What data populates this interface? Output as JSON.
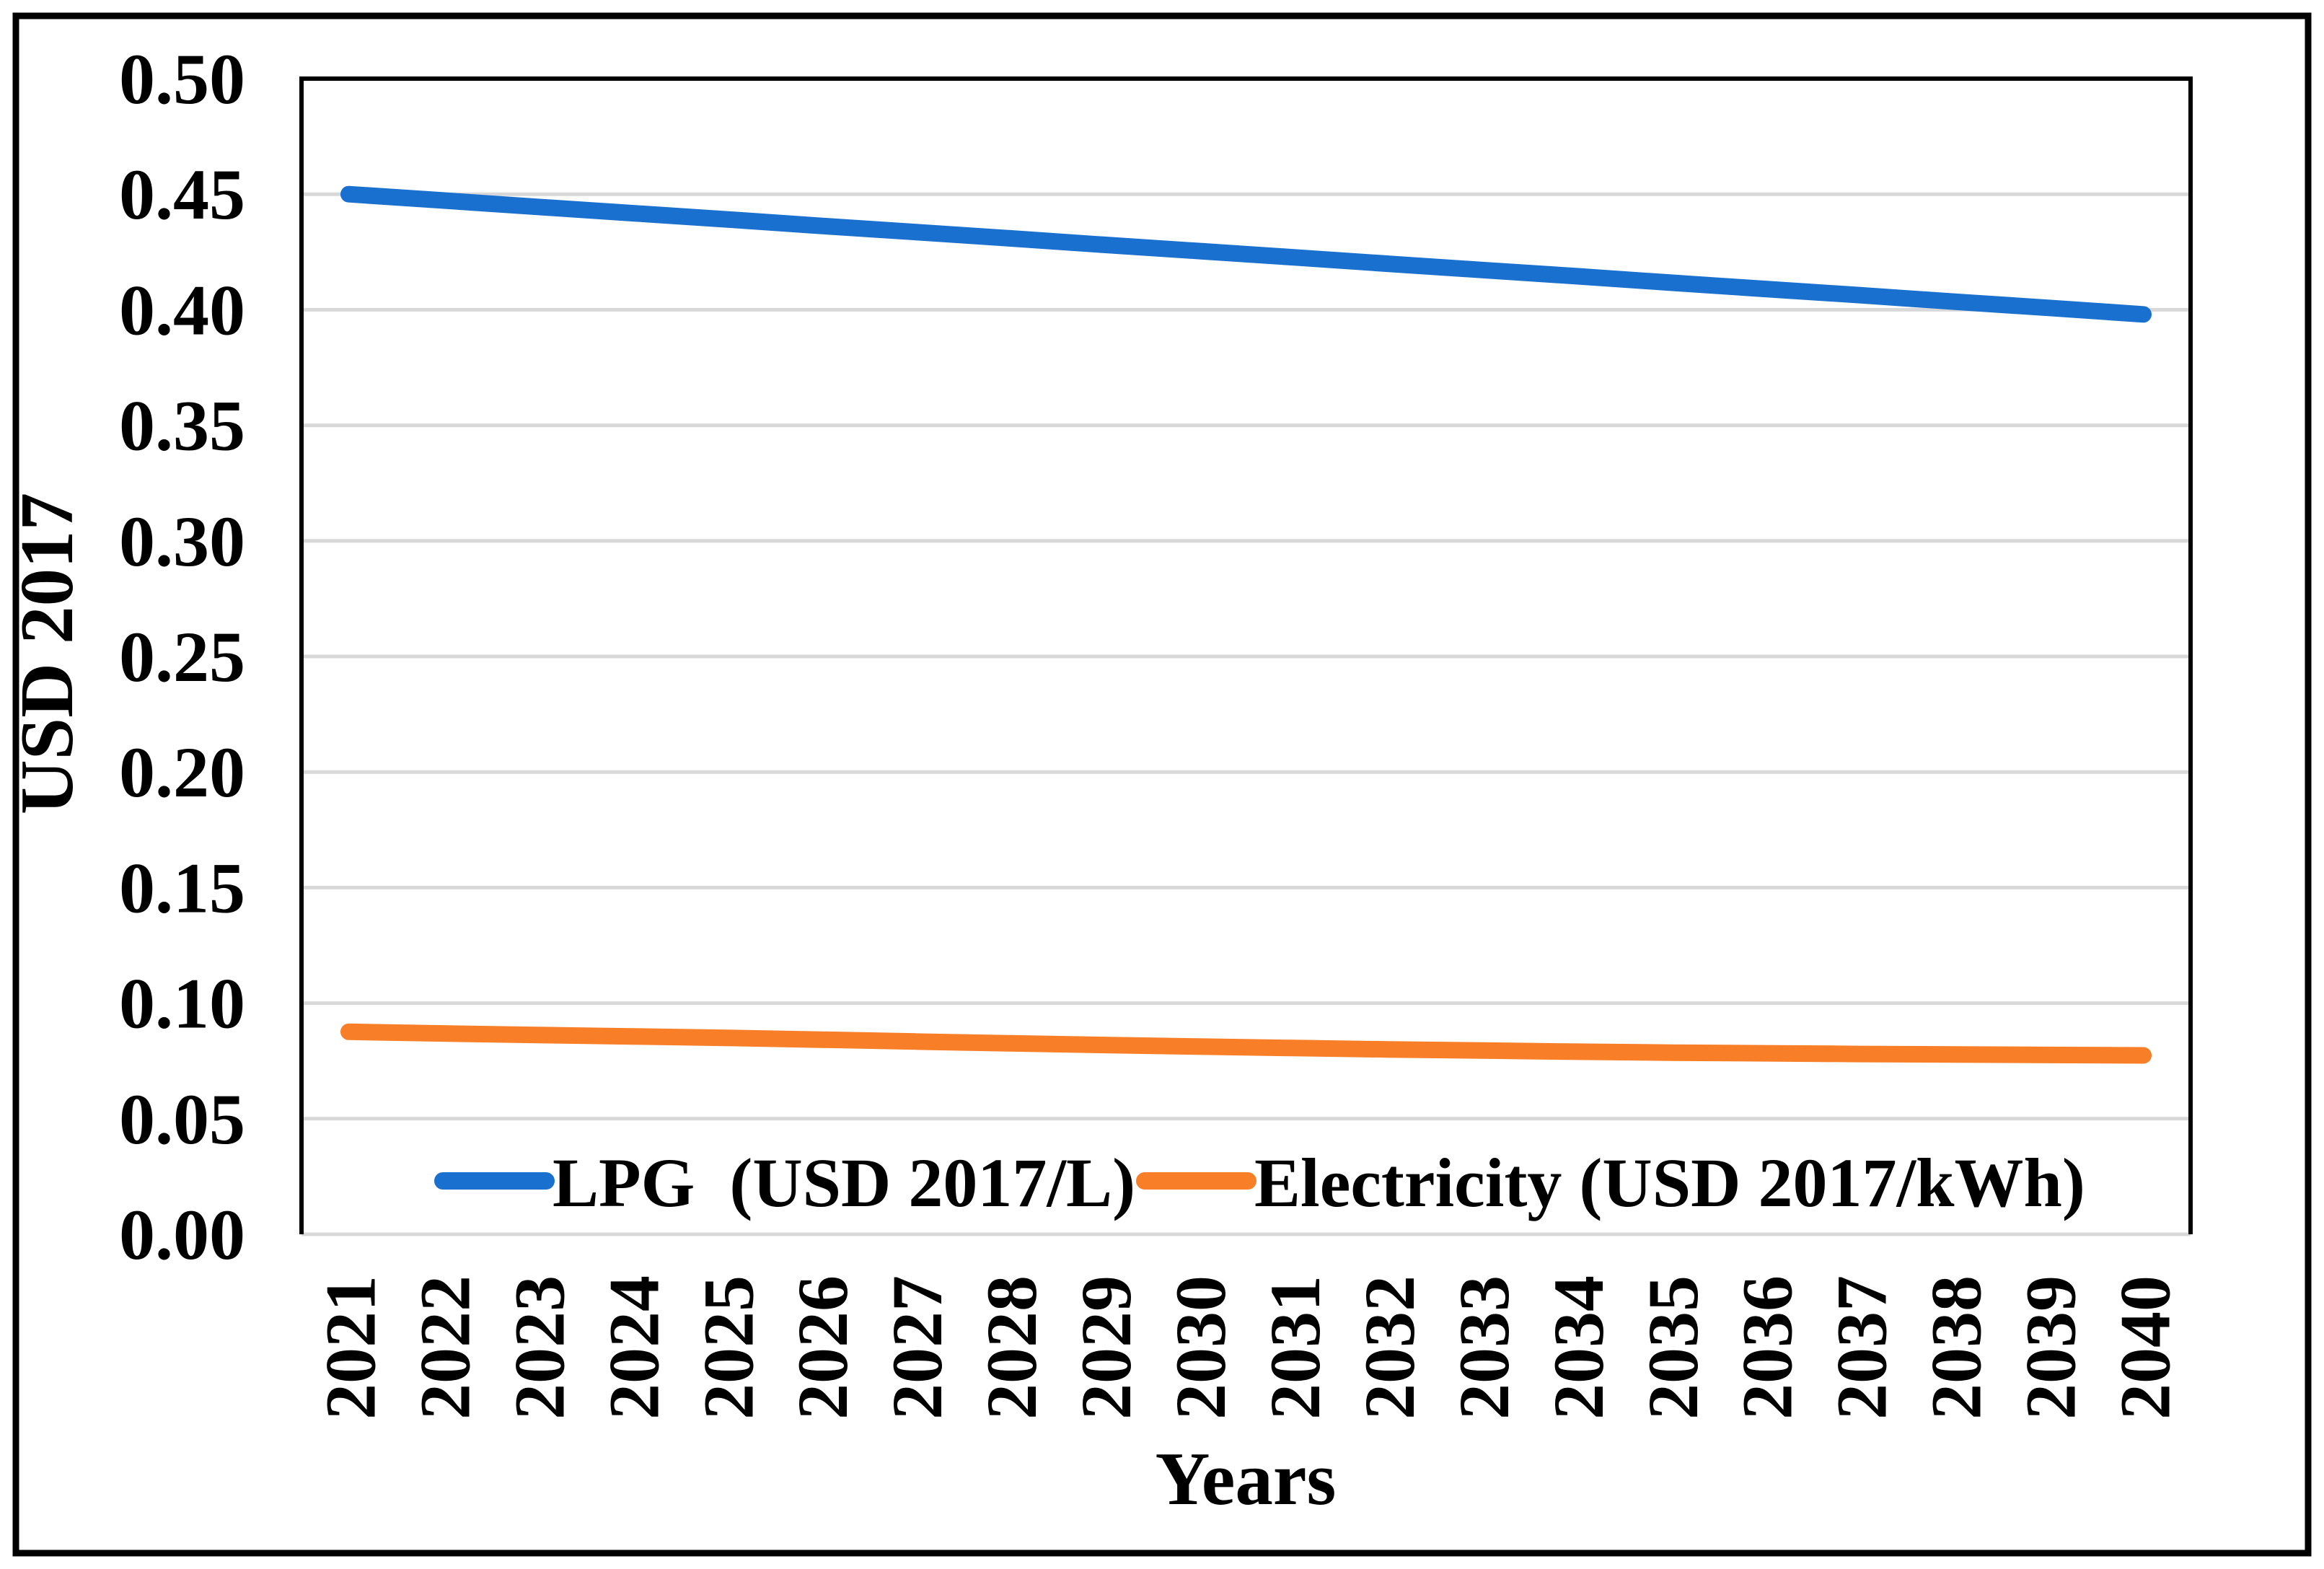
{
  "figure": {
    "background": "#ffffff",
    "frame_border_color": "#000000",
    "plot_border_color": "#000000",
    "axis_text_color": "#000000"
  },
  "chart_data": {
    "type": "line",
    "title": "",
    "xlabel": "Years",
    "ylabel": "USD 2017",
    "ylim": [
      0.0,
      0.5
    ],
    "ytick_step": 0.05,
    "yticks": [
      "0.00",
      "0.05",
      "0.10",
      "0.15",
      "0.20",
      "0.25",
      "0.30",
      "0.35",
      "0.40",
      "0.45",
      "0.50"
    ],
    "x": [
      "2021",
      "2022",
      "2023",
      "2024",
      "2025",
      "2026",
      "2027",
      "2028",
      "2029",
      "2030",
      "2031",
      "2032",
      "2033",
      "2034",
      "2035",
      "2036",
      "2037",
      "2038",
      "2039",
      "2040"
    ],
    "grid": "horizontal",
    "gridline_color": "#D8D8D8",
    "legend_position": "inside-bottom-center",
    "series": [
      {
        "name": "LPG  (USD 2017/L)",
        "color": "#1A70CE",
        "values": [
          0.45,
          0.4473,
          0.4445,
          0.4418,
          0.4391,
          0.4363,
          0.4336,
          0.4309,
          0.4281,
          0.4254,
          0.4227,
          0.4199,
          0.4172,
          0.4145,
          0.4117,
          0.409,
          0.4063,
          0.4035,
          0.4008,
          0.398
        ]
      },
      {
        "name": "Electricity (USD 2017/kWh)",
        "color": "#F87E28",
        "values": [
          0.0876,
          0.0869,
          0.0862,
          0.0856,
          0.085,
          0.0842,
          0.0834,
          0.0826,
          0.0819,
          0.0812,
          0.0806,
          0.08,
          0.0795,
          0.079,
          0.0786,
          0.0783,
          0.078,
          0.0778,
          0.0776,
          0.0774
        ]
      }
    ]
  }
}
